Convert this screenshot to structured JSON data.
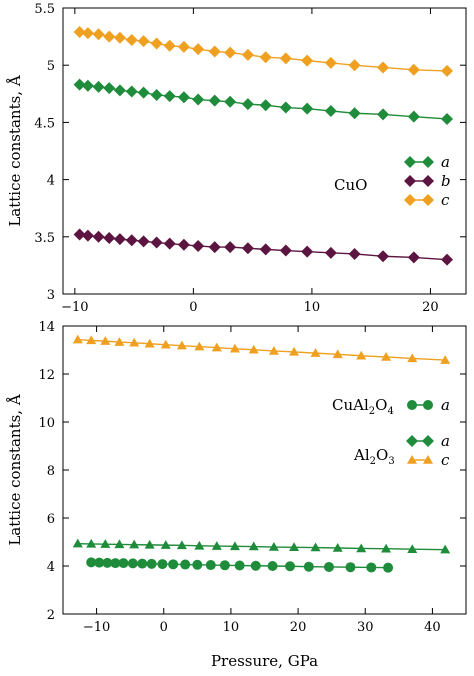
{
  "colors": {
    "green": "#1e8c3a",
    "purple": "#5c1540",
    "orange": "#f0a020"
  },
  "chart_data": [
    {
      "type": "line",
      "ylabel": "Lattice constants, Å",
      "xlim": [
        -11,
        23
      ],
      "ylim": [
        3,
        5.5
      ],
      "xticks": [
        -10,
        0,
        10,
        20
      ],
      "yticks": [
        3,
        3.5,
        4,
        4.5,
        5,
        5.5
      ],
      "xtick_labels": [
        "−10",
        "0",
        "10",
        "20"
      ],
      "ytick_labels": [
        "3",
        "3.5",
        "4",
        "4.5",
        "5",
        "5.5"
      ],
      "legend": {
        "group_label": "CuO",
        "entries": [
          {
            "label": "a",
            "color": "green",
            "marker": "diamond"
          },
          {
            "label": "b",
            "color": "purple",
            "marker": "diamond"
          },
          {
            "label": "c",
            "color": "orange",
            "marker": "diamond"
          }
        ]
      },
      "series": [
        {
          "label": "a",
          "color": "green",
          "marker": "diamond",
          "x": [
            -9.6,
            -8.9,
            -8.0,
            -7.1,
            -6.2,
            -5.2,
            -4.2,
            -3.1,
            -2.0,
            -0.8,
            0.4,
            1.8,
            3.1,
            4.6,
            6.1,
            7.8,
            9.6,
            11.6,
            13.6,
            16.0,
            18.6,
            21.4
          ],
          "y": [
            4.83,
            4.82,
            4.81,
            4.8,
            4.78,
            4.77,
            4.76,
            4.74,
            4.73,
            4.72,
            4.7,
            4.69,
            4.68,
            4.66,
            4.65,
            4.63,
            4.62,
            4.6,
            4.58,
            4.57,
            4.55,
            4.53
          ]
        },
        {
          "label": "b",
          "color": "purple",
          "marker": "diamond",
          "x": [
            -9.6,
            -8.9,
            -8.0,
            -7.1,
            -6.2,
            -5.2,
            -4.2,
            -3.1,
            -2.0,
            -0.8,
            0.4,
            1.8,
            3.1,
            4.6,
            6.1,
            7.8,
            9.6,
            11.6,
            13.6,
            16.0,
            18.6,
            21.4
          ],
          "y": [
            3.52,
            3.51,
            3.5,
            3.49,
            3.48,
            3.47,
            3.46,
            3.45,
            3.44,
            3.43,
            3.42,
            3.41,
            3.41,
            3.4,
            3.39,
            3.38,
            3.37,
            3.36,
            3.35,
            3.33,
            3.32,
            3.3
          ]
        },
        {
          "label": "c",
          "color": "orange",
          "marker": "diamond",
          "x": [
            -9.6,
            -8.9,
            -8.0,
            -7.1,
            -6.2,
            -5.2,
            -4.2,
            -3.1,
            -2.0,
            -0.8,
            0.4,
            1.8,
            3.1,
            4.6,
            6.1,
            7.8,
            9.6,
            11.6,
            13.6,
            16.0,
            18.6,
            21.4
          ],
          "y": [
            5.29,
            5.28,
            5.27,
            5.25,
            5.24,
            5.22,
            5.21,
            5.19,
            5.17,
            5.16,
            5.14,
            5.12,
            5.11,
            5.09,
            5.07,
            5.06,
            5.04,
            5.02,
            5.0,
            4.98,
            4.96,
            4.95
          ]
        }
      ]
    },
    {
      "type": "line",
      "xlabel": "Pressure, GPa",
      "ylabel": "Lattice constants, Å",
      "xlim": [
        -15,
        45
      ],
      "ylim": [
        2,
        14
      ],
      "xticks": [
        -10,
        0,
        10,
        20,
        30,
        40
      ],
      "yticks": [
        2,
        4,
        6,
        8,
        10,
        12,
        14
      ],
      "xtick_labels": [
        "−10",
        "0",
        "10",
        "20",
        "30",
        "40"
      ],
      "ytick_labels": [
        "2",
        "4",
        "6",
        "8",
        "10",
        "12",
        "14"
      ],
      "legend": {
        "groups": [
          {
            "label": "CuAl",
            "sub1": "2",
            "mid": "O",
            "sub2": "4",
            "entries": [
              {
                "label": "a",
                "color": "green",
                "marker": "circle"
              }
            ]
          },
          {
            "label": "Al",
            "sub1": "2",
            "mid": "O",
            "sub2": "3",
            "entries": [
              {
                "label": "a",
                "color": "green",
                "marker": "diamond"
              },
              {
                "label": "c",
                "color": "orange",
                "marker": "triangle"
              }
            ]
          }
        ]
      },
      "series": [
        {
          "label": "c",
          "group": "Al2O3",
          "color": "orange",
          "marker": "triangle",
          "x": [
            -12.8,
            -10.8,
            -8.7,
            -6.6,
            -4.4,
            -2.1,
            0.3,
            2.7,
            5.3,
            7.9,
            10.6,
            13.4,
            16.4,
            19.4,
            22.6,
            25.9,
            29.4,
            33.1,
            37.0,
            41.9
          ],
          "y": [
            13.43,
            13.4,
            13.37,
            13.33,
            13.3,
            13.26,
            13.22,
            13.18,
            13.14,
            13.1,
            13.05,
            13.01,
            12.96,
            12.92,
            12.87,
            12.82,
            12.76,
            12.71,
            12.65,
            12.58
          ]
        },
        {
          "label": "a",
          "group": "Al2O3",
          "color": "green",
          "marker": "triangle",
          "x": [
            -12.8,
            -10.8,
            -8.7,
            -6.6,
            -4.4,
            -2.1,
            0.3,
            2.7,
            5.3,
            7.9,
            10.6,
            13.4,
            16.4,
            19.4,
            22.6,
            25.9,
            29.4,
            33.1,
            37.0,
            41.9
          ],
          "y": [
            4.93,
            4.92,
            4.91,
            4.9,
            4.89,
            4.88,
            4.87,
            4.86,
            4.84,
            4.83,
            4.82,
            4.81,
            4.79,
            4.78,
            4.77,
            4.75,
            4.73,
            4.72,
            4.7,
            4.68
          ]
        },
        {
          "label": "a",
          "group": "CuAl2O4",
          "color": "green",
          "marker": "circle",
          "x": [
            -10.8,
            -9.6,
            -8.4,
            -7.2,
            -6.0,
            -4.6,
            -3.2,
            -1.8,
            -0.2,
            1.4,
            3.2,
            5.0,
            7.0,
            9.1,
            11.3,
            13.7,
            16.2,
            18.8,
            21.6,
            24.6,
            27.8,
            30.9,
            33.4
          ],
          "y": [
            4.15,
            4.14,
            4.13,
            4.12,
            4.12,
            4.11,
            4.1,
            4.09,
            4.08,
            4.07,
            4.06,
            4.05,
            4.04,
            4.03,
            4.02,
            4.01,
            4.0,
            3.99,
            3.97,
            3.96,
            3.95,
            3.94,
            3.93
          ]
        }
      ]
    }
  ]
}
